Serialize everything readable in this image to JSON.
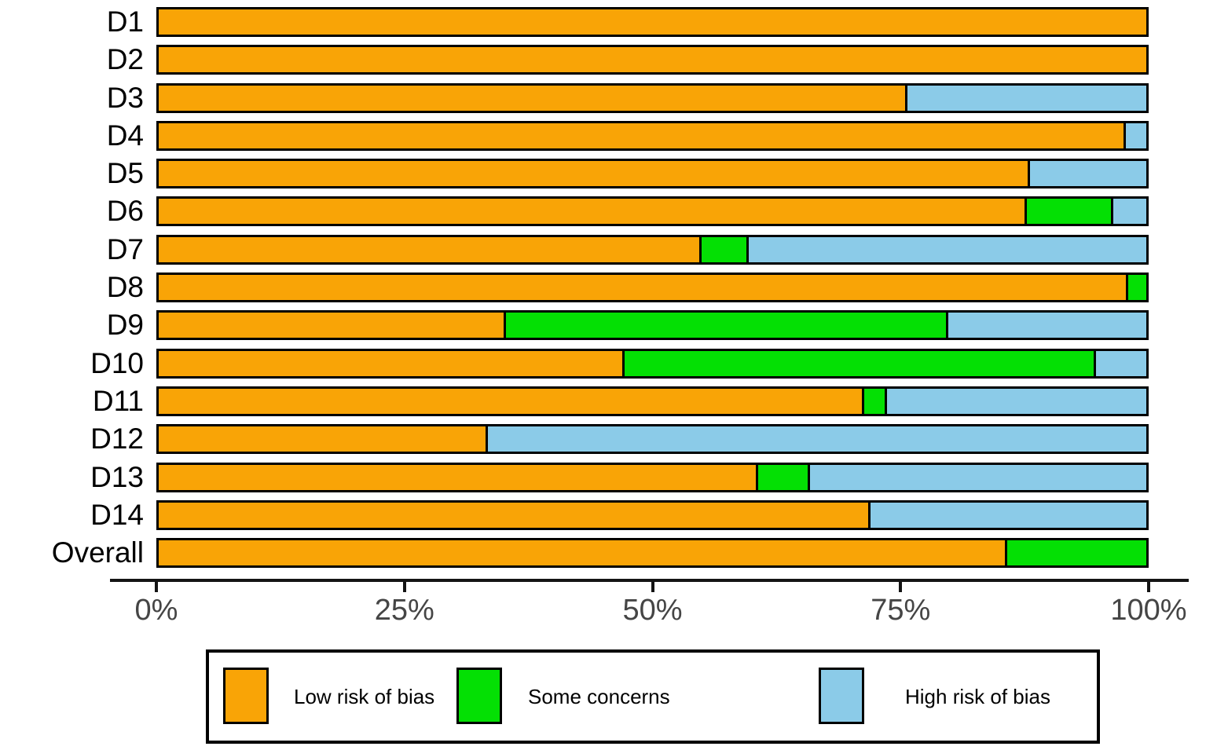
{
  "chart_data": {
    "type": "bar",
    "orientation": "horizontal",
    "stacked": true,
    "title": "",
    "xlabel": "",
    "ylabel": "",
    "xlim": [
      0,
      100
    ],
    "grid": false,
    "legend_position": "bottom",
    "x_tick_labels": [
      "0%",
      "25%",
      "50%",
      "75%",
      "100%"
    ],
    "categories": [
      "D1",
      "D2",
      "D3",
      "D4",
      "D5",
      "D6",
      "D7",
      "D8",
      "D9",
      "D10",
      "D11",
      "D12",
      "D13",
      "D14",
      "Overall"
    ],
    "series": [
      {
        "name": "Low risk of bias",
        "color": "#F9A406",
        "values": [
          100,
          100,
          75.6,
          97.7,
          88.0,
          87.7,
          54.7,
          97.9,
          34.9,
          46.9,
          71.2,
          33.1,
          60.5,
          71.8,
          85.7
        ]
      },
      {
        "name": "Some concerns",
        "color": "#04E004",
        "values": [
          0,
          0,
          0,
          0,
          0,
          8.7,
          4.8,
          2.1,
          44.8,
          47.8,
          2.3,
          0,
          5.2,
          0,
          14.3
        ]
      },
      {
        "name": "High risk of bias",
        "color": "#8BCBE8",
        "values": [
          0,
          0,
          24.4,
          2.3,
          12.0,
          3.6,
          40.5,
          0,
          20.3,
          5.3,
          26.5,
          66.9,
          34.3,
          28.2,
          0
        ]
      }
    ],
    "bar_border_color": "#000000",
    "axis_color": "#141414",
    "tick_label_color": "#454545"
  }
}
